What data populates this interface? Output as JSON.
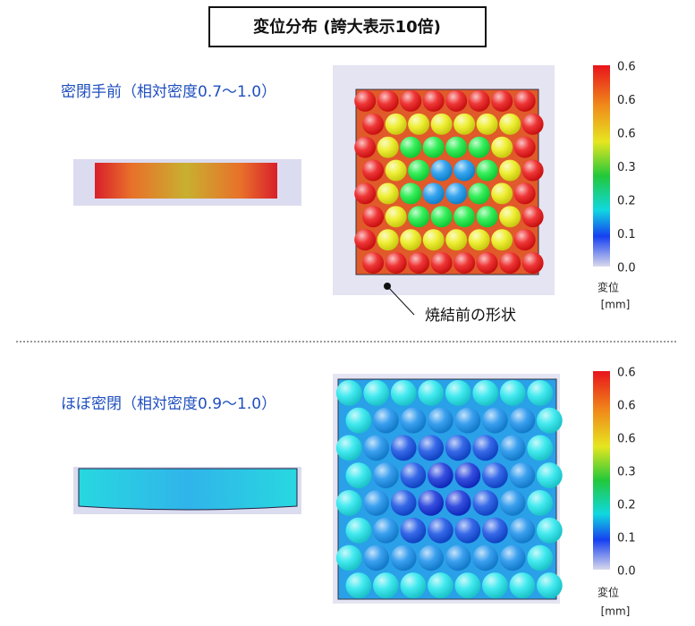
{
  "title": "変位分布 (誇大表示10倍)",
  "panels": [
    {
      "label": "密閉手前（相対密度0.7～1.0）",
      "colorbar": {
        "ticks": [
          "0.6",
          "0.6",
          "0.6",
          "0.3",
          "0.2",
          "0.1",
          "0.0"
        ],
        "quantity": "変位",
        "unit": "[mm]"
      },
      "annotation": "焼結前の形状"
    },
    {
      "label": "ほぼ密閉（相対密度0.9～1.0）",
      "colorbar": {
        "ticks": [
          "0.6",
          "0.6",
          "0.6",
          "0.3",
          "0.2",
          "0.1",
          "0.0"
        ],
        "quantity": "変位",
        "unit": "[mm]"
      }
    }
  ]
}
